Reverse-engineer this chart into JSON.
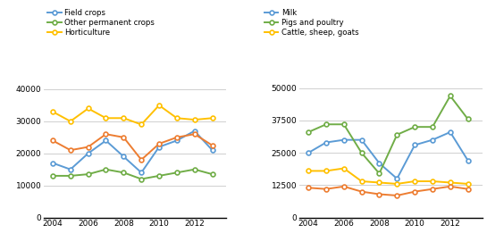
{
  "years": [
    2004,
    2005,
    2006,
    2007,
    2008,
    2009,
    2010,
    2011,
    2012,
    2013
  ],
  "left": {
    "field_crops": [
      17000,
      15000,
      20000,
      24000,
      19000,
      14000,
      22000,
      24000,
      27000,
      21000
    ],
    "other_perm": [
      13000,
      13000,
      13500,
      15000,
      14000,
      12000,
      13000,
      14000,
      15000,
      13500
    ],
    "horticulture": [
      33000,
      30000,
      34000,
      31000,
      31000,
      29000,
      35000,
      31000,
      30500,
      31000
    ],
    "orange_line": [
      24000,
      21000,
      22000,
      26000,
      25000,
      18000,
      23000,
      25000,
      26000,
      22500
    ],
    "colors": {
      "field_crops": "#5B9BD5",
      "other_perm": "#70AD47",
      "horticulture": "#FFC000",
      "orange_line": "#ED7D31"
    },
    "ylim": [
      0,
      46000
    ],
    "yticks": [
      0,
      10000,
      20000,
      30000,
      40000
    ]
  },
  "right": {
    "milk": [
      25000,
      29000,
      30000,
      30000,
      21000,
      15000,
      28000,
      30000,
      33000,
      22000
    ],
    "pigs_poultry": [
      33000,
      36000,
      36000,
      25000,
      17000,
      32000,
      35000,
      35000,
      47000,
      38000
    ],
    "cattle_sheep": [
      18000,
      18000,
      19000,
      14000,
      13500,
      13000,
      14000,
      14000,
      13500,
      13000
    ],
    "orange_line": [
      11500,
      11000,
      12000,
      10000,
      9000,
      8500,
      10000,
      11000,
      12000,
      11000
    ],
    "colors": {
      "milk": "#5B9BD5",
      "pigs_poultry": "#70AD47",
      "cattle_sheep": "#FFC000",
      "orange_line": "#ED7D31"
    },
    "ylim": [
      0,
      57000
    ],
    "yticks": [
      0,
      12500,
      25000,
      37500,
      50000
    ]
  },
  "legend_left": [
    "Field crops",
    "Other permanent crops",
    "Horticulture"
  ],
  "legend_right": [
    "Milk",
    "Pigs and poultry",
    "Cattle, sheep, goats"
  ]
}
